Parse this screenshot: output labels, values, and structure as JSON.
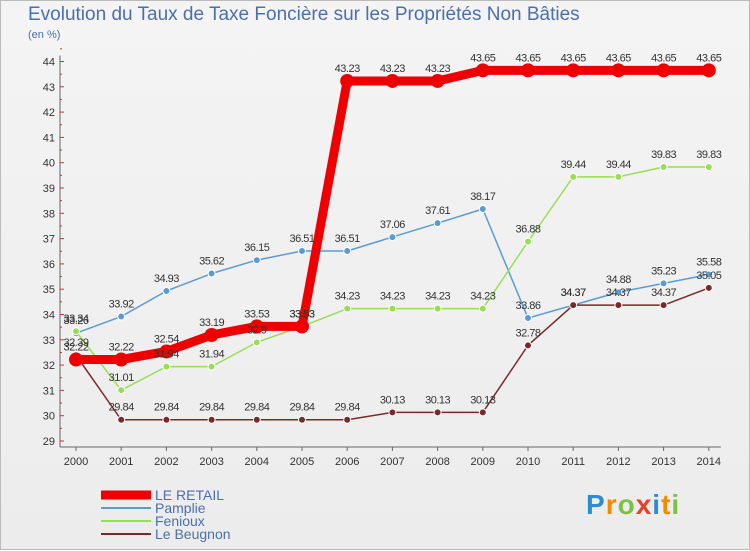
{
  "chart_data": {
    "type": "line",
    "title": "Evolution du Taux de Taxe Foncière sur les Propriétés Non Bâties",
    "ylabel": "(en %)",
    "xlabel": "",
    "ylim": [
      29,
      44
    ],
    "grid": false,
    "legend_position": "bottom-left",
    "x": [
      "2000",
      "2001",
      "2002",
      "2003",
      "2004",
      "2005",
      "2006",
      "2007",
      "2008",
      "2009",
      "2010",
      "2011",
      "2012",
      "2013",
      "2014"
    ],
    "y_ticks": [
      "29",
      "30",
      "31",
      "32",
      "33",
      "34",
      "35",
      "36",
      "37",
      "38",
      "39",
      "40",
      "41",
      "42",
      "43",
      "44"
    ],
    "series": [
      {
        "name": "LE RETAIL",
        "color": "#ee0000",
        "values": [
          32.22,
          32.22,
          32.54,
          33.19,
          33.53,
          33.53,
          43.23,
          43.23,
          43.23,
          43.65,
          43.65,
          43.65,
          43.65,
          43.65,
          43.65
        ],
        "labels": [
          "32.22",
          "32.22",
          "32.54",
          "33.19",
          "33.53",
          "33.53",
          "43.23",
          "43.23",
          "43.23",
          "43.65",
          "43.65",
          "43.65",
          "43.65",
          "43.65",
          "43.65"
        ]
      },
      {
        "name": "Pamplie",
        "color": "#5b9bd5",
        "values": [
          33.26,
          33.92,
          34.93,
          35.62,
          36.15,
          36.51,
          36.51,
          37.06,
          37.61,
          38.17,
          33.86,
          34.37,
          34.88,
          35.23,
          35.58
        ],
        "labels": [
          "33.26",
          "33.92",
          "34.93",
          "35.62",
          "36.15",
          "36.51",
          "36.51",
          "37.06",
          "37.61",
          "38.17",
          "33.86",
          "34.37",
          "34.88",
          "35.23",
          "35.58"
        ]
      },
      {
        "name": "Fenioux",
        "color": "#99dd55",
        "values": [
          33.34,
          31.01,
          31.94,
          31.94,
          32.9,
          33.53,
          34.23,
          34.23,
          34.23,
          34.23,
          36.88,
          39.44,
          39.44,
          39.83,
          39.83
        ],
        "labels": [
          "33.34",
          "31.01",
          "31.94",
          "31.94",
          "32.9",
          "33.53",
          "34.23",
          "34.23",
          "34.23",
          "34.23",
          "36.88",
          "39.44",
          "39.44",
          "39.83",
          "39.83"
        ]
      },
      {
        "name": "Le Beugnon",
        "color": "#7a2828",
        "values": [
          32.39,
          29.84,
          29.84,
          29.84,
          29.84,
          29.84,
          29.84,
          30.13,
          30.13,
          30.13,
          32.78,
          34.37,
          34.37,
          34.37,
          35.05
        ],
        "labels": [
          "32.39",
          "29.84",
          "29.84",
          "29.84",
          "29.84",
          "29.84",
          "29.84",
          "30.13",
          "30.13",
          "30.13",
          "32.78",
          "34.37",
          "34.37",
          "34.37",
          "35.05"
        ]
      }
    ]
  },
  "logo": {
    "p": "P",
    "r": "r",
    "o": "o",
    "x": "x",
    "i": "i",
    "t": "t",
    "i2": "i"
  }
}
